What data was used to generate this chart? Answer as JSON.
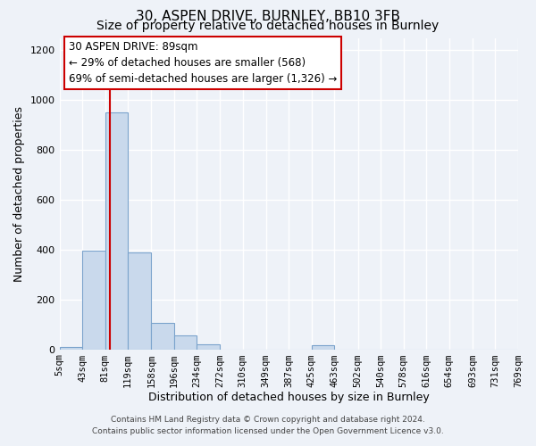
{
  "title": "30, ASPEN DRIVE, BURNLEY, BB10 3FB",
  "subtitle": "Size of property relative to detached houses in Burnley",
  "xlabel": "Distribution of detached houses by size in Burnley",
  "ylabel": "Number of detached properties",
  "bin_edges": [
    5,
    43,
    81,
    119,
    158,
    196,
    234,
    272,
    310,
    349,
    387,
    425,
    463,
    502,
    540,
    578,
    616,
    654,
    693,
    731,
    769
  ],
  "bar_heights": [
    10,
    395,
    950,
    390,
    105,
    55,
    20,
    0,
    0,
    0,
    0,
    15,
    0,
    0,
    0,
    0,
    0,
    0,
    0,
    0
  ],
  "bar_color": "#c9d9ec",
  "bar_edge_color": "#7ba3cc",
  "bar_edge_width": 0.8,
  "property_line_x": 89,
  "property_line_color": "#cc0000",
  "ylim": [
    0,
    1250
  ],
  "yticks": [
    0,
    200,
    400,
    600,
    800,
    1000,
    1200
  ],
  "annotation_box_text": "30 ASPEN DRIVE: 89sqm\n← 29% of detached houses are smaller (568)\n69% of semi-detached houses are larger (1,326) →",
  "footer_line1": "Contains HM Land Registry data © Crown copyright and database right 2024.",
  "footer_line2": "Contains public sector information licensed under the Open Government Licence v3.0.",
  "background_color": "#eef2f8",
  "plot_background_color": "#eef2f8",
  "grid_color": "#ffffff",
  "tick_label_fontsize": 7.5,
  "title_fontsize": 11,
  "subtitle_fontsize": 10,
  "xlabel_fontsize": 9,
  "ylabel_fontsize": 9,
  "annotation_fontsize": 8.5
}
